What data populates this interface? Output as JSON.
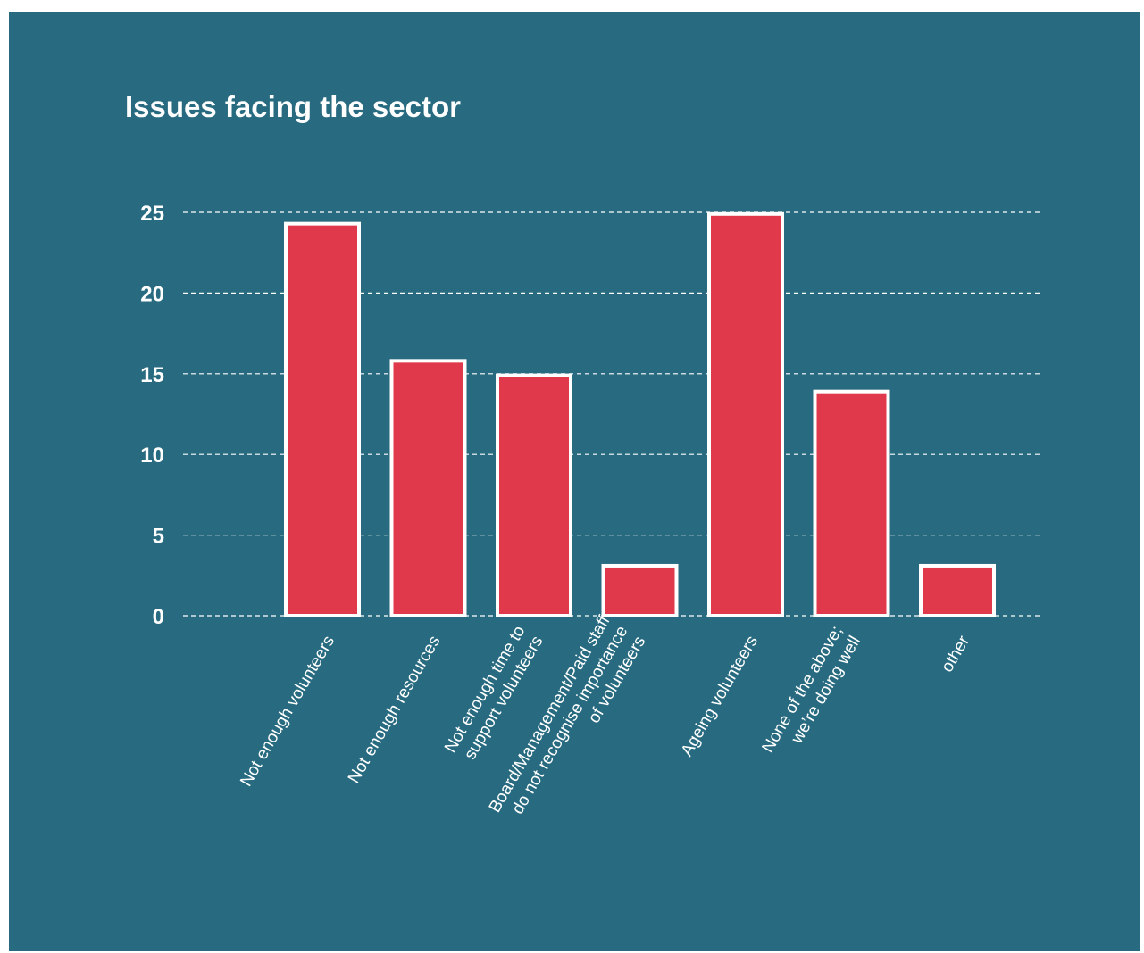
{
  "chart_data": {
    "type": "bar",
    "title": "Issues facing the sector",
    "xlabel": "",
    "ylabel": "",
    "categories": [
      [
        "Not enough volunteers"
      ],
      [
        "Not enough resources"
      ],
      [
        "Not enough time to",
        "support volunteers"
      ],
      [
        "Board/Management/Paid staff",
        "do not recognise importance",
        "of volunteers"
      ],
      [
        "Ageing volunteers"
      ],
      [
        "None of the above;",
        "we’re doing well"
      ],
      [
        "other"
      ]
    ],
    "values": [
      24.3,
      15.8,
      14.9,
      3.1,
      24.9,
      13.9,
      3.1
    ],
    "ylim": [
      0,
      25
    ],
    "yticks": [
      0,
      5,
      10,
      15,
      20,
      25
    ],
    "grid": true,
    "legend": "none",
    "colors": {
      "background": "#286b80",
      "bar_fill": "#e0394b",
      "bar_stroke": "#ffffff",
      "grid": "#ffffff",
      "text": "#ffffff"
    }
  }
}
